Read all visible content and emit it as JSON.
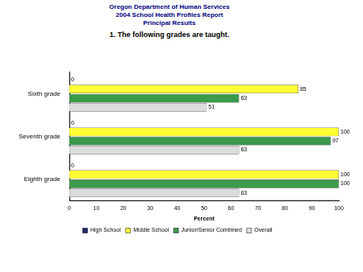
{
  "chart_data": {
    "type": "bar",
    "orientation": "horizontal",
    "title": [
      "Oregon Department of Human Services",
      "2004 School Health Profiles Report",
      "Principal Results"
    ],
    "subtitle": "1. The following grades are taught.",
    "xlabel": "Percent",
    "categories": [
      "Sixth grade",
      "Seventh grade",
      "Eighth grade"
    ],
    "series": [
      {
        "name": "High School",
        "color": "#1f2a6b",
        "values": [
          0,
          0,
          0
        ]
      },
      {
        "name": "Middle School",
        "color": "#ffff33",
        "values": [
          85,
          100,
          100
        ]
      },
      {
        "name": "Junior/Senior Combined",
        "color": "#3c9a4a",
        "values": [
          63,
          97,
          100
        ]
      },
      {
        "name": "Overall",
        "color": "#dcdcdc",
        "values": [
          51,
          63,
          63
        ]
      }
    ],
    "xlim": [
      0,
      100
    ],
    "xticks": [
      0,
      10,
      20,
      30,
      40,
      50,
      60,
      70,
      80,
      90,
      100
    ],
    "grid": false,
    "legend": "bottom",
    "data_labels": true
  }
}
